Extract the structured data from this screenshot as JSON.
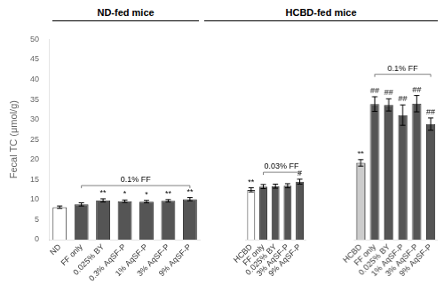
{
  "chart_data": [
    {
      "type": "bar",
      "title": "ND-fed mice",
      "y_label": "Fecal TC (μmol/g)",
      "categories": [
        "ND",
        "FF only",
        "0.025% BY",
        "0.3% AqSF-P",
        "1% AqSF-P",
        "3% AqSF-P",
        "9% AqSF-P"
      ],
      "values": [
        8.1,
        8.8,
        9.8,
        9.6,
        9.5,
        9.7,
        10.1
      ],
      "errors": [
        0.3,
        0.4,
        0.4,
        0.3,
        0.3,
        0.3,
        0.4
      ],
      "colors": [
        "#ffffff",
        "#555555",
        "#555555",
        "#555555",
        "#555555",
        "#555555",
        "#555555"
      ],
      "annotations": [
        {
          "x": "0.025% BY",
          "text": "**"
        },
        {
          "x": "0.3% AqSF-P",
          "text": "*"
        },
        {
          "x": "1% AqSF-P",
          "text": "*"
        },
        {
          "x": "3% AqSF-P",
          "text": "**"
        },
        {
          "x": "9% AqSF-P",
          "text": "**"
        }
      ],
      "bracket": {
        "label": "0.1% FF",
        "start": "FF only",
        "end": "9% AqSF-P",
        "y": 13.5
      },
      "ylim": [
        0,
        50
      ],
      "yticks": [
        0,
        5,
        10,
        15,
        20,
        25,
        30,
        35,
        40,
        45,
        50
      ],
      "grid": false
    },
    {
      "type": "bar",
      "title": "HCBD-fed mice",
      "categories": [
        "HCBD",
        "FF only",
        "0.025% BY",
        "3% AqSF-P",
        "9% AqSF-P"
      ],
      "values": [
        12.2,
        13.0,
        13.1,
        13.2,
        14.2
      ],
      "errors": [
        0.5,
        0.5,
        0.5,
        0.5,
        0.6
      ],
      "colors": [
        "#ffffff",
        "#555555",
        "#555555",
        "#555555",
        "#555555"
      ],
      "annotations": [
        {
          "x": "HCBD",
          "text": "**"
        },
        {
          "x": "9% AqSF-P",
          "text": "#"
        }
      ],
      "bracket": {
        "label": "0.03% FF",
        "start": "FF only",
        "end": "9% AqSF-P",
        "y": 16.5
      },
      "ylim": [
        0,
        50
      ],
      "yticks": [
        0,
        5,
        10,
        15,
        20,
        25,
        30,
        35,
        40,
        45,
        50
      ],
      "grid": false,
      "tick_labels": "x"
    },
    {
      "type": "bar",
      "categories": [
        "HCBD",
        "FF only",
        "0.025% BY",
        "1% AqSF-P",
        "3% AqSF-P",
        "9% AqSF-P"
      ],
      "values": [
        18.8,
        33.2,
        33.0,
        30.5,
        33.3,
        28.3
      ],
      "errors": [
        0.8,
        1.8,
        1.5,
        2.5,
        2.0,
        1.5
      ],
      "colors": [
        "#cccccc",
        "#555555",
        "#555555",
        "#555555",
        "#555555",
        "#555555"
      ],
      "annotations": [
        {
          "x": "HCBD",
          "text": "**"
        },
        {
          "x": "FF only",
          "text": "##"
        },
        {
          "x": "0.025% BY",
          "text": "##"
        },
        {
          "x": "1% AqSF-P",
          "text": "##"
        },
        {
          "x": "3% AqSF-P",
          "text": "##"
        },
        {
          "x": "9% AqSF-P",
          "text": "##"
        }
      ],
      "bracket": {
        "label": "0.1% FF",
        "start": "FF only",
        "end": "9% AqSF-P",
        "y": 40.5
      },
      "ylim": [
        0,
        50
      ],
      "yticks": [
        0,
        5,
        10,
        15,
        20,
        25,
        30,
        35,
        40,
        45,
        50
      ],
      "grid": false,
      "tick_labels": "x"
    }
  ]
}
